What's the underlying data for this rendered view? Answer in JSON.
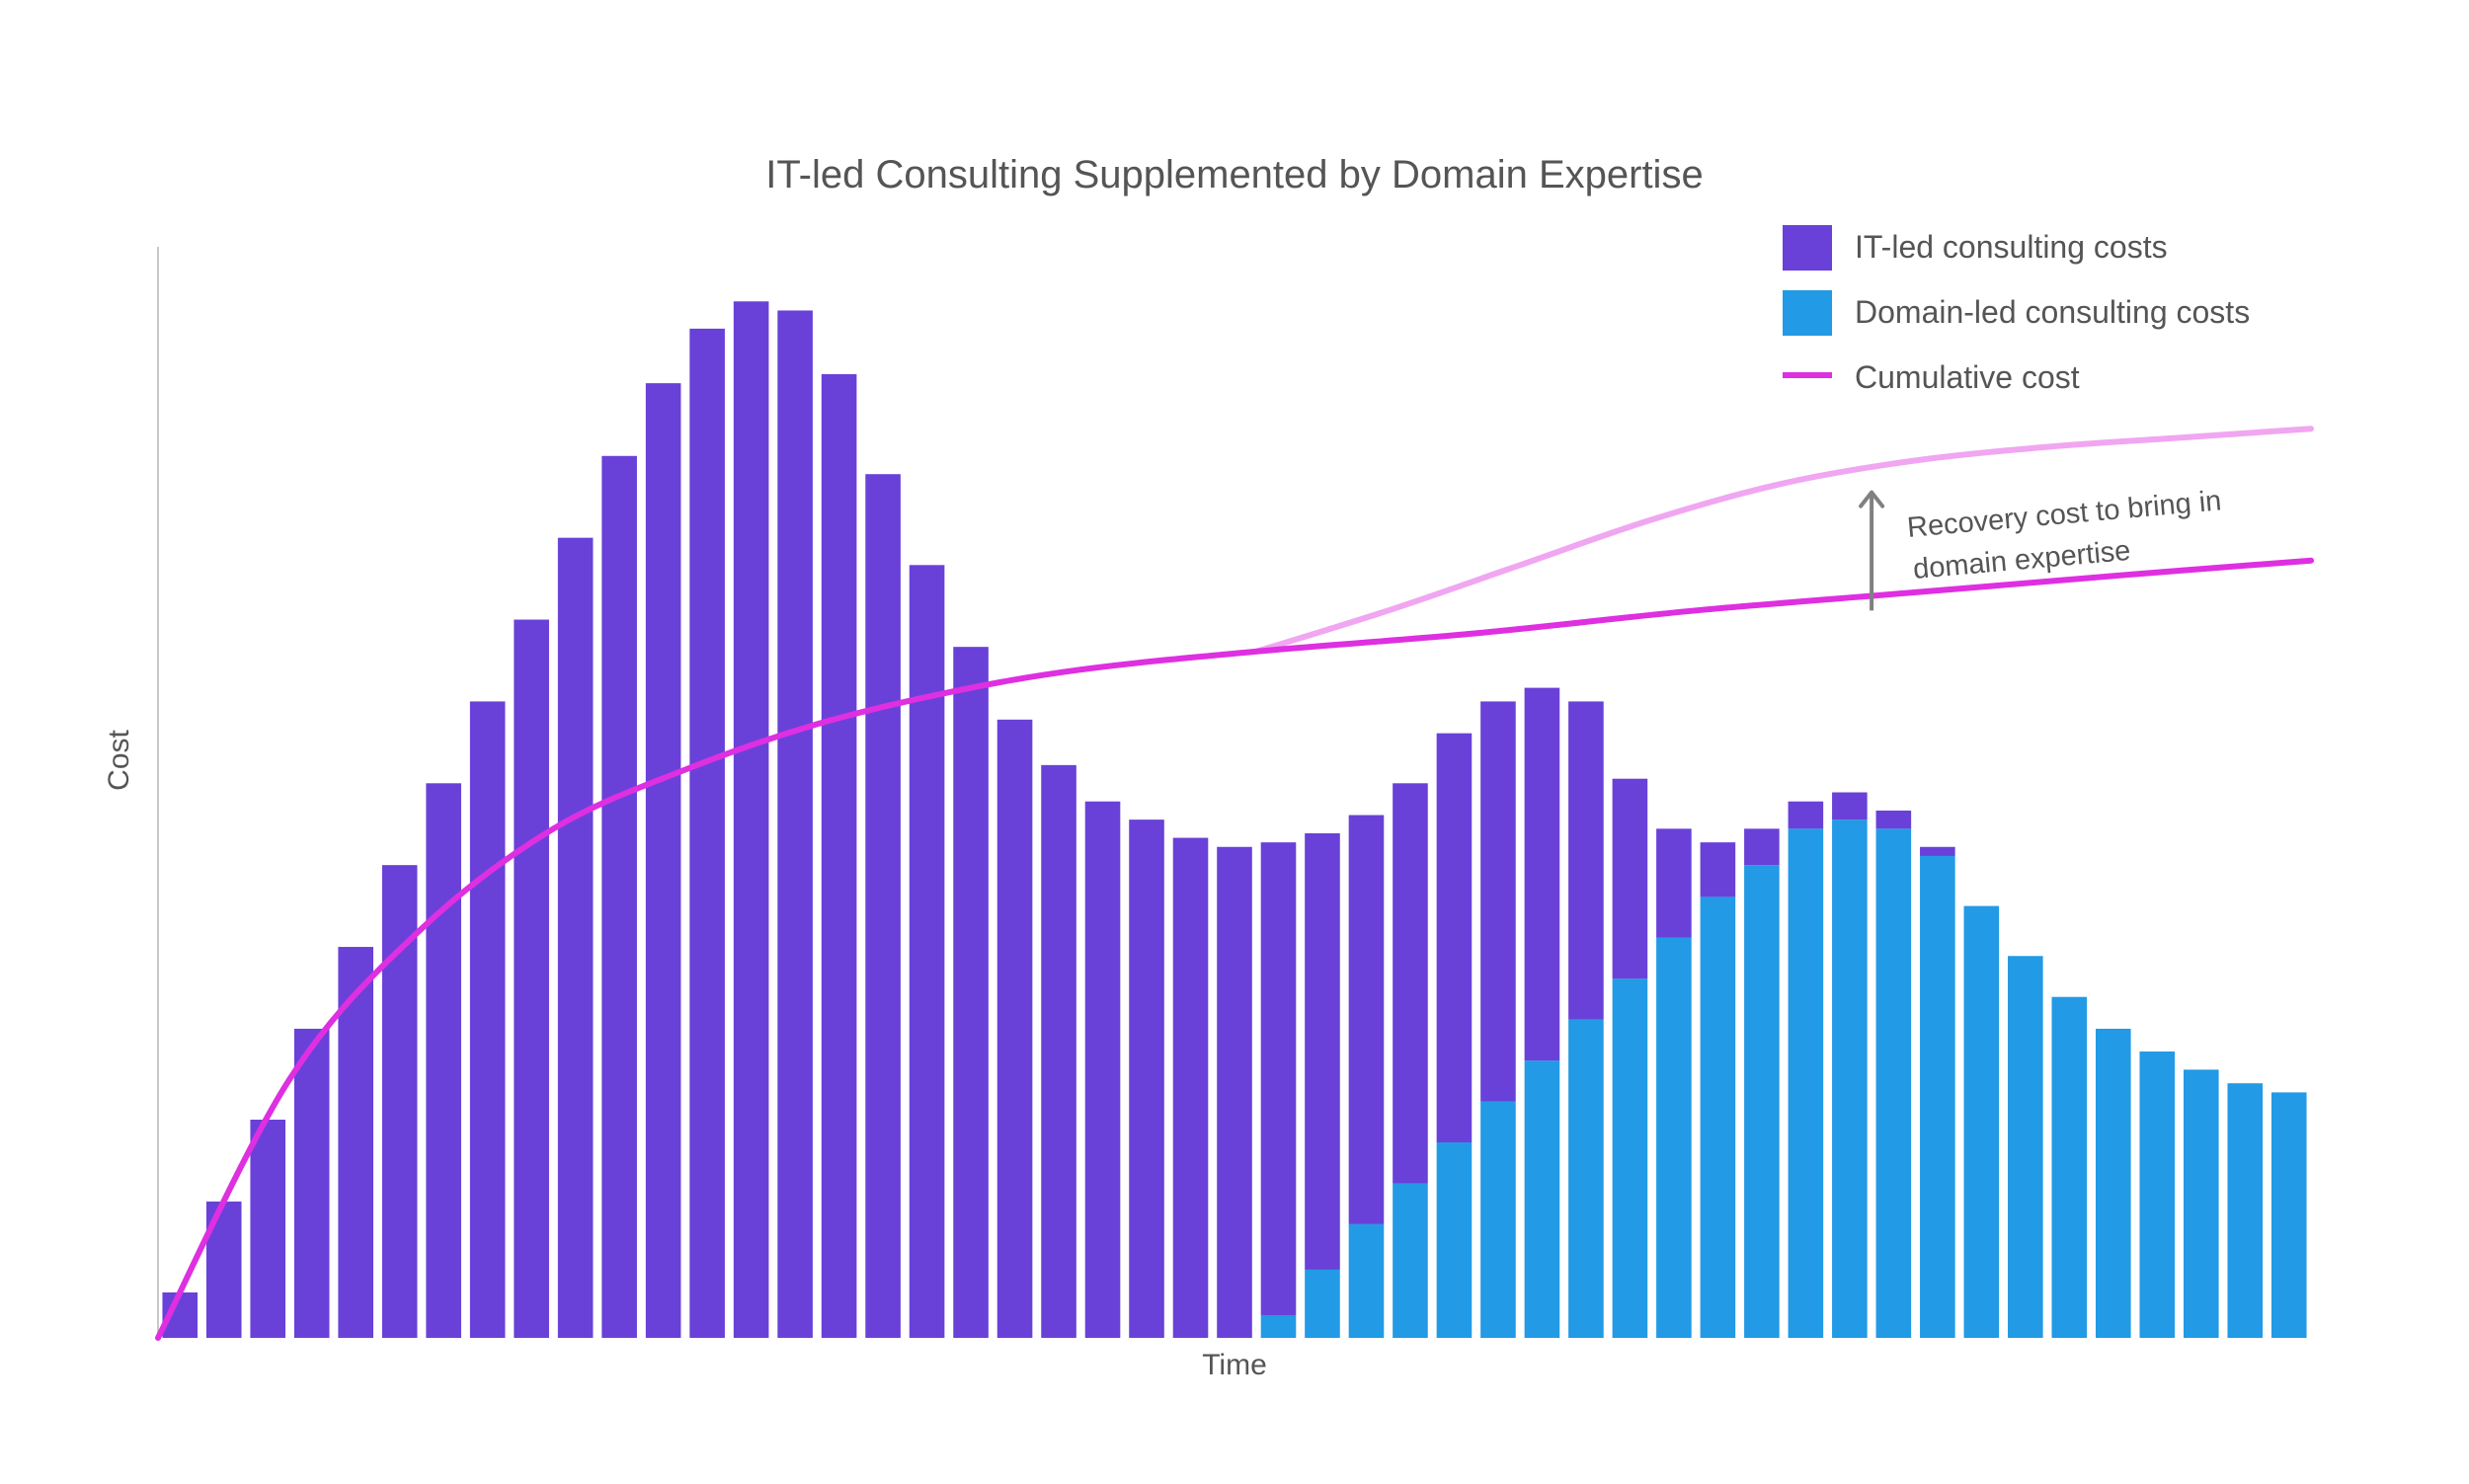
{
  "chart_data": {
    "type": "bar",
    "title": "IT-led Consulting Supplemented by Domain Expertise",
    "xlabel": "Time",
    "ylabel": "Cost",
    "ylim": [
      0,
      120
    ],
    "grid": false,
    "legend_position": "top-right",
    "colors": {
      "it": "#6941D8",
      "domain": "#229AE5",
      "cumulative": "#DE2FE1",
      "recovery": "#F0A6F1",
      "axis": "#c8c8c8",
      "arrow": "#808080"
    },
    "series": [
      {
        "name": "IT-led consulting costs",
        "values": [
          5,
          15,
          24,
          34,
          43,
          52,
          61,
          70,
          79,
          88,
          97,
          105,
          111,
          114,
          113,
          106,
          95,
          85,
          76,
          68,
          63,
          59,
          57,
          55,
          54,
          52,
          48,
          45,
          44,
          45,
          44,
          41,
          35,
          22,
          12,
          6,
          4,
          3,
          3,
          2,
          1,
          0,
          0,
          0,
          0,
          0,
          0,
          0,
          0
        ]
      },
      {
        "name": "Domain-led consulting costs",
        "values": [
          0,
          0,
          0,
          0,
          0,
          0,
          0,
          0,
          0,
          0,
          0,
          0,
          0,
          0,
          0,
          0,
          0,
          0,
          0,
          0,
          0,
          0,
          0,
          0,
          0,
          2.5,
          7.5,
          12.5,
          17,
          21.5,
          26,
          30.5,
          35,
          39.5,
          44,
          48.5,
          52,
          56,
          57,
          56,
          53,
          47.5,
          42,
          37.5,
          34,
          31.5,
          29.5,
          28,
          27
        ]
      }
    ],
    "cumulative_cost": {
      "name": "Cumulative cost",
      "x": [
        0,
        3,
        6,
        9,
        12,
        15,
        18,
        21,
        25,
        30,
        35,
        40,
        45,
        49
      ],
      "y": [
        0,
        28.5,
        45,
        56,
        62.5,
        67.5,
        71,
        73.5,
        75.5,
        77.5,
        80,
        82,
        84,
        85.5
      ]
    },
    "recovery_curve": {
      "x": [
        25,
        28,
        31,
        34,
        37,
        40,
        43,
        46,
        49
      ],
      "y": [
        75.5,
        80,
        85,
        90,
        94,
        96.5,
        98,
        99,
        100
      ]
    },
    "annotation": {
      "line1": "Recovery cost to bring in",
      "line2": "domain expertise",
      "x": 39,
      "y_from": 80,
      "y_to": 93
    },
    "legend": [
      {
        "label": "IT-led consulting costs",
        "kind": "box",
        "series": "it"
      },
      {
        "label": "Domain-led consulting costs",
        "kind": "box",
        "series": "domain"
      },
      {
        "label": "Cumulative cost",
        "kind": "line",
        "series": "cumulative"
      }
    ]
  }
}
